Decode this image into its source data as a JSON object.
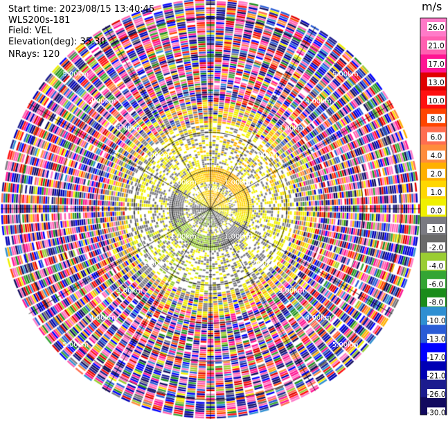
{
  "header": {
    "start_time": "Start time: 2023/08/15 13:40:45",
    "instrument": "WLS200s-181",
    "field": "Field: VEL",
    "elevation": "Elevation(deg): 35.30",
    "nrays": "NRays: 120"
  },
  "chart_data": {
    "type": "heatmap",
    "projection": "polar-ppi",
    "field": "VEL",
    "units": "m/s",
    "nrays": 120,
    "range_ring_labels": [
      "1.00km",
      "2.00km",
      "3.00km",
      "4.00km",
      "5.00km"
    ],
    "range_rings_km": [
      1,
      2,
      3,
      4,
      5
    ],
    "max_range_km": 5.5,
    "colorbar": {
      "ticks": [
        "26.0",
        "21.0",
        "17.0",
        "13.0",
        "10.0",
        "8.0",
        "6.0",
        "4.0",
        "2.0",
        "1.0",
        "0.0",
        "-1.0",
        "-2.0",
        "-4.0",
        "-6.0",
        "-8.0",
        "-10.0",
        "-13.0",
        "-17.0",
        "-21.0",
        "-26.0",
        "-30.0"
      ],
      "bounds": [
        -30,
        -26,
        -21,
        -17,
        -13,
        -10,
        -8,
        -6,
        -4,
        -2,
        -1,
        0,
        1,
        2,
        4,
        6,
        8,
        10,
        13,
        17,
        21,
        26,
        30
      ],
      "colors": [
        "#120a5e",
        "#1c1c8e",
        "#0000b4",
        "#0000ff",
        "#2a5cd6",
        "#2e8fd2",
        "#1a8c1a",
        "#34a534",
        "#9acd32",
        "#6a6a6a",
        "#7a7a82",
        "#f0f000",
        "#ffd700",
        "#ffb000",
        "#ff8c3c",
        "#ff6e50",
        "#ff4500",
        "#ff1010",
        "#e00000",
        "#ff1493",
        "#ff5fb0",
        "#ff7ac8"
      ]
    },
    "background_color": "#ffffff"
  }
}
